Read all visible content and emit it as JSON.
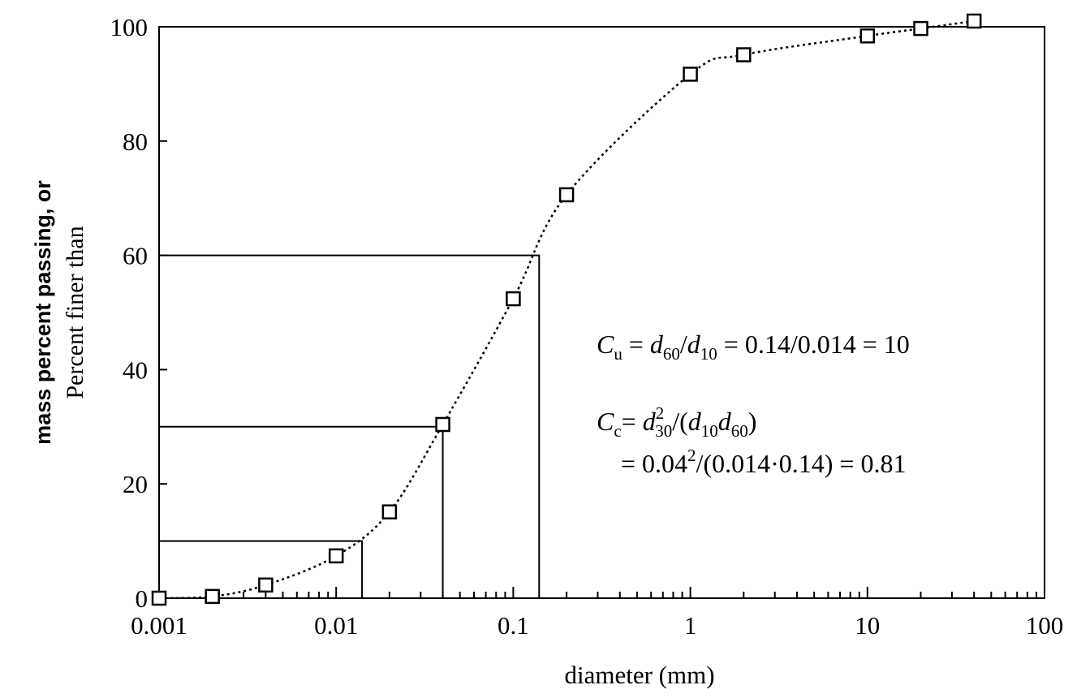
{
  "chart_data": {
    "type": "scatter",
    "x_label": "diameter (mm)",
    "y_label": [
      "mass percent passing, or",
      "Percent finer than"
    ],
    "x": [
      0.001,
      0.002,
      0.004,
      0.01,
      0.02,
      0.04,
      0.1,
      0.2,
      1,
      2,
      10,
      20,
      40
    ],
    "values": [
      0,
      0.3,
      2.3,
      7.4,
      15.1,
      30.4,
      52.4,
      70.6,
      91.7,
      95.1,
      98.4,
      99.7,
      101
    ],
    "color": "#000000",
    "xscale": "log",
    "xlim": [
      0.001,
      100
    ],
    "ylim": [
      0,
      100
    ],
    "xticks": [
      0.001,
      0.01,
      0.1,
      1,
      10,
      100
    ],
    "xminorticks": [
      0.002,
      0.003,
      0.004,
      0.005,
      0.006,
      0.007,
      0.008,
      0.009,
      0.02,
      0.03,
      0.04,
      0.05,
      0.06,
      0.07,
      0.08,
      0.09,
      0.2,
      0.3,
      0.4,
      0.5,
      0.6,
      0.7,
      0.8,
      0.9,
      2,
      3,
      4,
      5,
      6,
      7,
      8,
      9,
      20,
      30,
      40,
      50,
      60,
      70,
      80,
      90
    ],
    "yticks": [
      0,
      20,
      40,
      60,
      80,
      100
    ],
    "guides": [
      {
        "x": 0.014,
        "y": 10
      },
      {
        "x": 0.04,
        "y": 30
      },
      {
        "x": 0.14,
        "y": 60
      }
    ],
    "annotations": [
      [
        {
          "t": "C",
          "f": "i"
        },
        {
          "t": "u",
          "f": "sub"
        },
        {
          "t": " = ",
          "f": ""
        },
        {
          "t": "d",
          "f": "i"
        },
        {
          "t": "60",
          "f": "sub"
        },
        {
          "t": "/",
          "f": ""
        },
        {
          "t": "d",
          "f": "i"
        },
        {
          "t": "10",
          "f": "sub"
        },
        {
          "t": " = 0.14/0.014 = 10",
          "f": ""
        }
      ],
      [
        {
          "t": "C",
          "f": "i"
        },
        {
          "t": "c",
          "f": "sub"
        },
        {
          "t": "= ",
          "f": ""
        },
        {
          "t": "d",
          "f": "i"
        },
        {
          "t": "2",
          "f": "sup"
        },
        {
          "t": "30",
          "f": "sub"
        },
        {
          "t": "/(",
          "f": ""
        },
        {
          "t": "d",
          "f": "i"
        },
        {
          "t": "10",
          "f": "sub"
        },
        {
          "t": "d",
          "f": "i"
        },
        {
          "t": "60",
          "f": "sub"
        },
        {
          "t": ")",
          "f": ""
        }
      ],
      [
        {
          "t": "= 0.04",
          "f": ""
        },
        {
          "t": "2",
          "f": "sup"
        },
        {
          "t": "/(0.014·0.14) = 0.81",
          "f": ""
        }
      ]
    ]
  }
}
